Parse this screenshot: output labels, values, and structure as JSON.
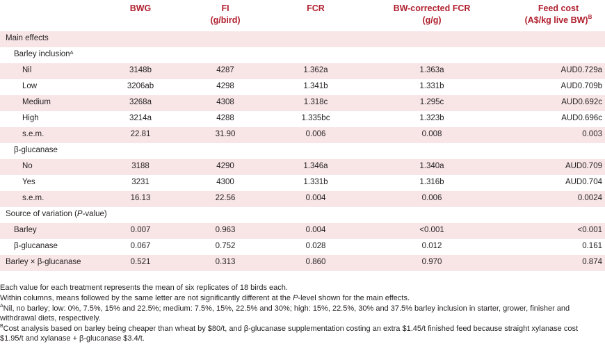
{
  "header": {
    "bwg": "BWG",
    "fi": "FI",
    "fi_unit": "(g/bird)",
    "fcr": "FCR",
    "bwfcr": "BW-corrected FCR",
    "bwfcr_unit": "(g/g)",
    "cost": "Feed cost",
    "cost_unit": "(A$/kg live BW)",
    "cost_sup": "B"
  },
  "rows": {
    "main_effects": "Main effects",
    "barley_inclusion": "Barley inclusion",
    "barley_inclusion_sup": "A",
    "nil": [
      "Nil",
      "3148b",
      "4287",
      "1.362a",
      "1.363a",
      "AUD0.729a"
    ],
    "low": [
      "Low",
      "3206ab",
      "4298",
      "1.341b",
      "1.331b",
      "AUD0.709b"
    ],
    "medium": [
      "Medium",
      "3268a",
      "4308",
      "1.318c",
      "1.295c",
      "AUD0.692c"
    ],
    "high": [
      "High",
      "3214a",
      "4288",
      "1.335bc",
      "1.323b",
      "AUD0.696c"
    ],
    "sem1": [
      "s.e.m.",
      "22.81",
      "31.90",
      "0.006",
      "0.008",
      "0.003"
    ],
    "bglucanase": "β-glucanase",
    "no": [
      "No",
      "3188",
      "4290",
      "1.346a",
      "1.340a",
      "AUD0.709"
    ],
    "yes": [
      "Yes",
      "3231",
      "4300",
      "1.331b",
      "1.316b",
      "AUD0.704"
    ],
    "sem2": [
      "s.e.m.",
      "16.13",
      "22.56",
      "0.004",
      "0.006",
      "0.0024"
    ],
    "source_pre": "Source of variation (",
    "source_p": "P",
    "source_post": "-value)",
    "barley": [
      "Barley",
      "0.007",
      "0.963",
      "0.004",
      "<0.001",
      "<0.001"
    ],
    "bgluc": [
      "β-glucanase",
      "0.067",
      "0.752",
      "0.028",
      "0.012",
      "0.161"
    ],
    "interaction": [
      "Barley × β-glucanase",
      "0.521",
      "0.313",
      "0.860",
      "0.970",
      "0.874"
    ]
  },
  "notes": {
    "n1": "Each value for each treatment represents the mean of six replicates of 18 birds each.",
    "n2_pre": "Within columns, means followed by the same letter are not significantly different at the ",
    "n2_p": "P",
    "n2_post": "-level shown for the main effects.",
    "n3_sup": "A",
    "n3": "Nil, no barley; low: 0%, 7.5%, 15% and 22.5%; medium: 7.5%, 15%, 22.5% and 30%; high: 15%, 22.5%, 30% and 37.5% barley inclusion in starter, grower, finisher and withdrawal diets, respectively.",
    "n4_sup": "B",
    "n4": "Cost analysis based on barley being cheaper than wheat by $80/t, and β-glucanase supplementation costing an extra $1.45/t finished feed because straight xylanase cost $1.95/t and xylanase + β-glucanase $3.4/t."
  }
}
